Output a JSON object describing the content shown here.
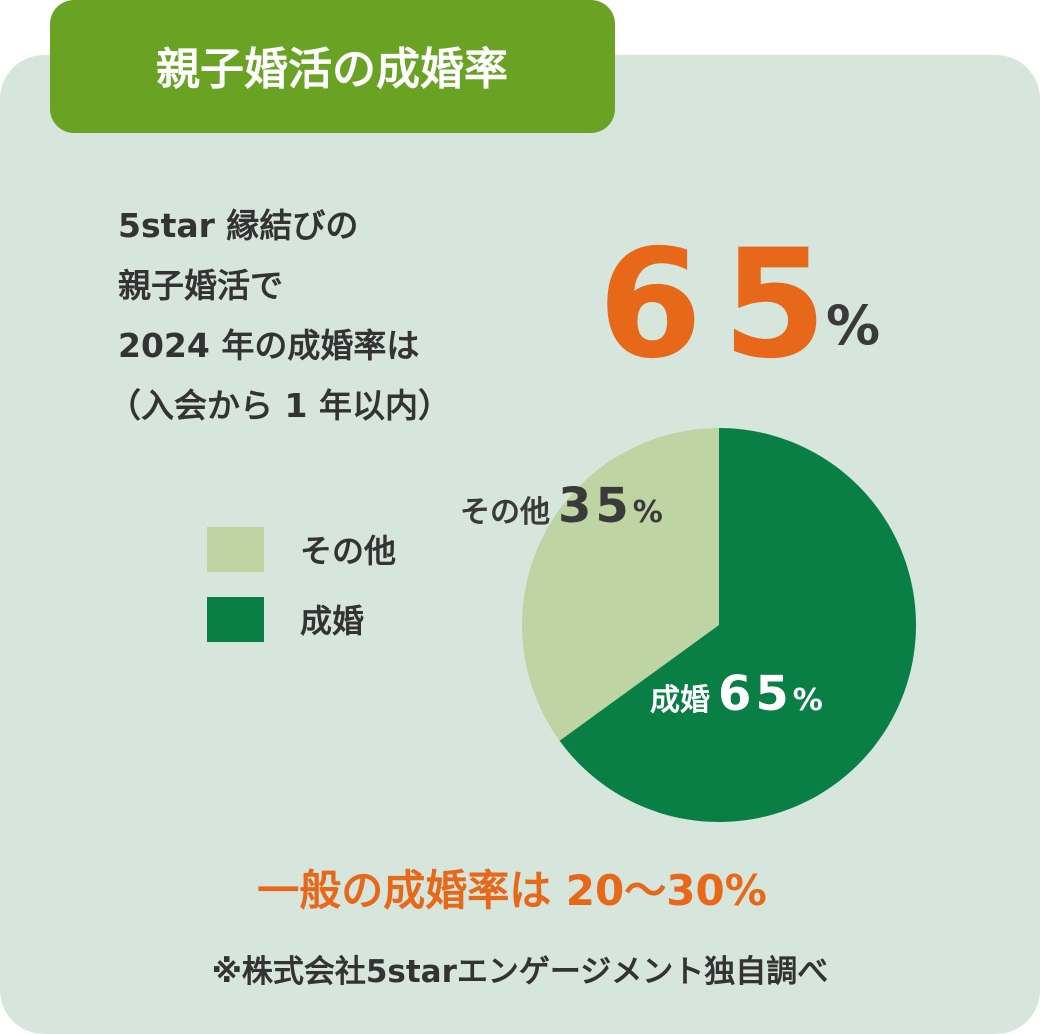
{
  "chart_data": {
    "type": "pie",
    "title": "親子婚活の成婚率",
    "description": [
      "5star 縁結びの",
      "親子婚活で",
      "2024 年の成婚率は",
      "（入会から 1 年以内）"
    ],
    "headline": {
      "value": 65,
      "unit": "%"
    },
    "categories": [
      "その他",
      "成婚"
    ],
    "values": [
      35,
      65
    ],
    "unit": "%",
    "colors": [
      "#bed5a3",
      "#0a7f45"
    ],
    "label_colors": [
      "#3a3a3a",
      "#ffffff"
    ],
    "footer": "一般の成婚率は 20〜30%",
    "note": "※株式会社5starエンゲージメント独自調べ"
  }
}
